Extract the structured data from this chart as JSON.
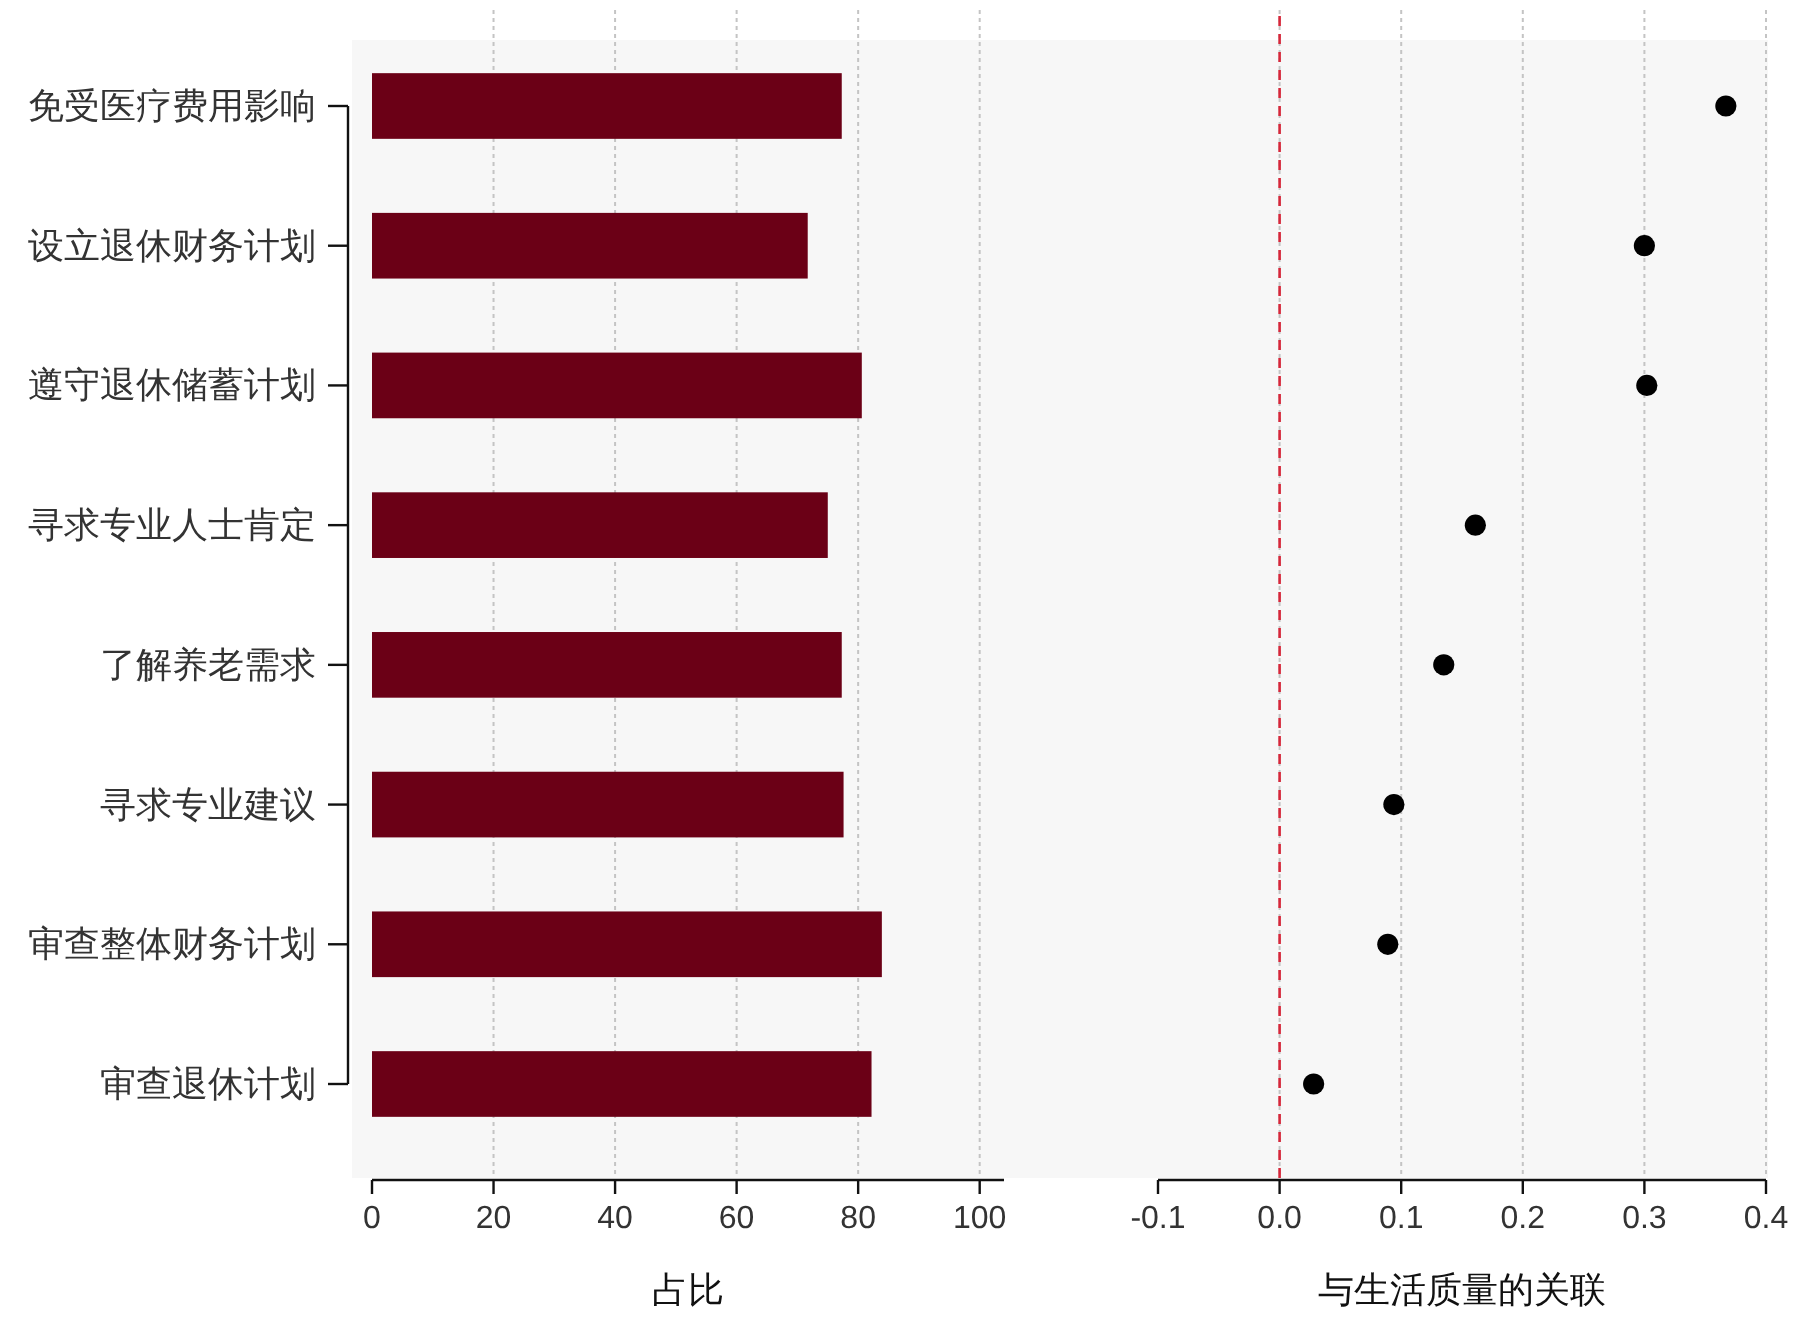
{
  "chart_data": [
    {
      "type": "bar",
      "orientation": "horizontal",
      "categories": [
        "免受医疗费用影响",
        "设立退休财务计划",
        "遵守退休储蓄计划",
        "寻求专业人士肯定",
        "了解养老需求",
        "寻求专业建议",
        "审查整体财务计划",
        "审查退休计划"
      ],
      "values": [
        77.3,
        71.7,
        80.6,
        75.0,
        77.3,
        77.6,
        83.9,
        82.2
      ],
      "color": "#6b0016",
      "xlim": [
        0,
        104
      ],
      "xticks": [
        0,
        20,
        40,
        60,
        80,
        100
      ],
      "xlabel": "占比",
      "grid": "x"
    },
    {
      "type": "scatter",
      "orientation": "horizontal",
      "categories": [
        null,
        null,
        null,
        null,
        null,
        null,
        null,
        null
      ],
      "values": [
        0.367,
        0.3,
        0.302,
        0.161,
        0.135,
        0.094,
        0.089,
        0.028
      ],
      "color": "#000000",
      "marker": "circle",
      "xlim": [
        -0.1,
        0.4
      ],
      "xticks": [
        -0.1,
        {
          "value": 0,
          "label": "0.0"
        },
        0.1,
        0.2,
        0.3,
        0.4
      ],
      "xlabel": "与生活质量的关联",
      "grid": "x",
      "tick_labels": "x",
      "ref_lines": [
        {
          "axis": "x",
          "value": 0,
          "color": "#d6273a",
          "line_style": "dashed"
        }
      ]
    }
  ]
}
